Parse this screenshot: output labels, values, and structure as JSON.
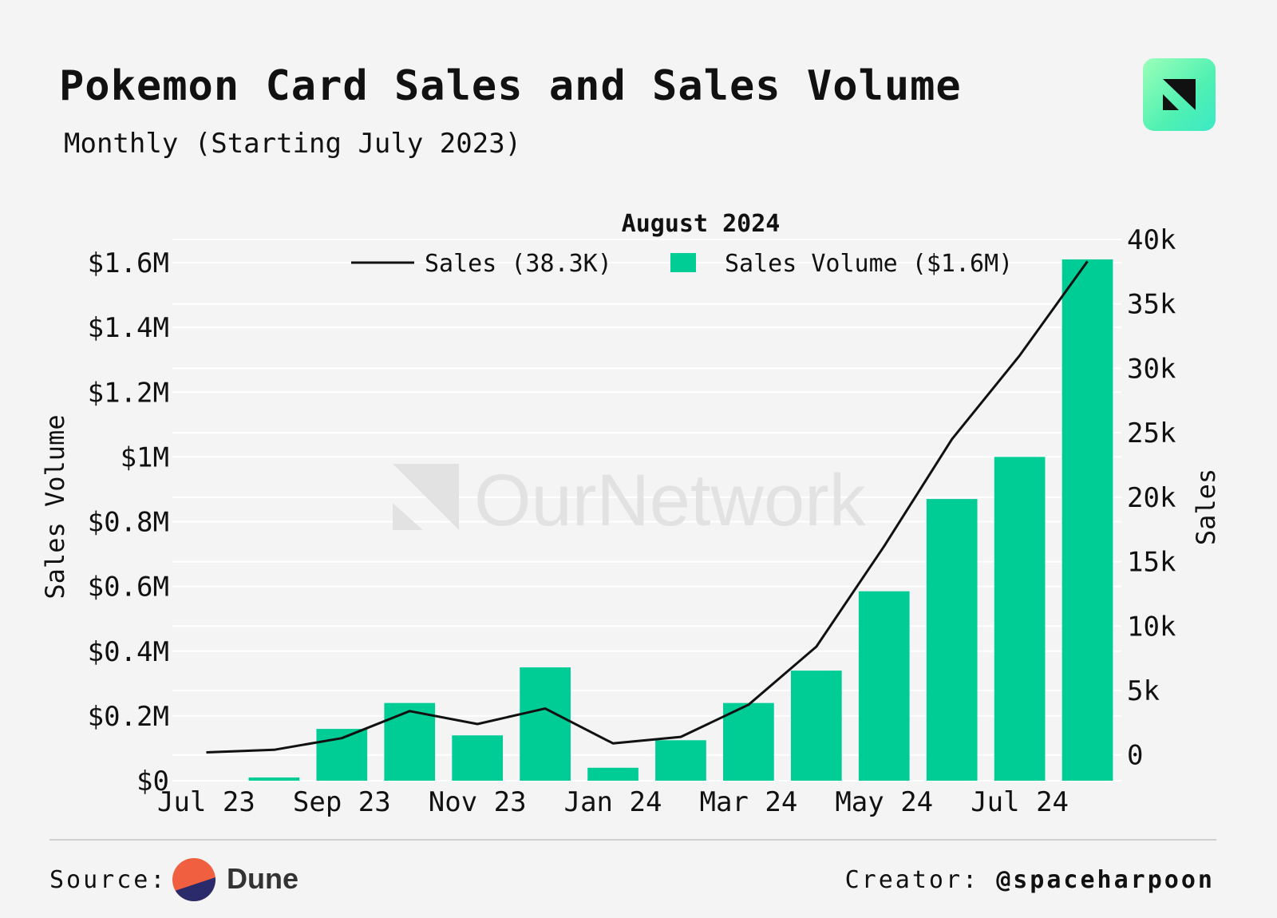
{
  "header": {
    "title": "Pokemon Card Sales and Sales Volume",
    "subtitle": "Monthly (Starting July 2023)"
  },
  "watermark": "OurNetwork",
  "footer": {
    "source_label": "Source:",
    "source_name": "Dune",
    "creator_label": "Creator:",
    "creator_handle": "@spaceharpoon"
  },
  "colors": {
    "bar": "#00cc96",
    "line": "#111111",
    "grid": "#ffffff",
    "background": "#f4f4f4"
  },
  "chart_data": {
    "type": "bar",
    "title": "August 2024",
    "categories": [
      "Jul 23",
      "Aug 23",
      "Sep 23",
      "Oct 23",
      "Nov 23",
      "Dec 23",
      "Jan 24",
      "Feb 24",
      "Mar 24",
      "Apr 24",
      "May 24",
      "Jun 24",
      "Jul 24",
      "Aug 24"
    ],
    "x_tick_labels": [
      "Jul 23",
      "Sep 23",
      "Nov 23",
      "Jan 24",
      "Mar 24",
      "May 24",
      "Jul 24"
    ],
    "series": [
      {
        "name": "Sales Volume",
        "legend_label": "Sales Volume ($1.6M)",
        "type": "bar",
        "axis": "left",
        "values": [
          0,
          0.01,
          0.16,
          0.24,
          0.14,
          0.35,
          0.04,
          0.125,
          0.24,
          0.34,
          0.585,
          0.87,
          1.0,
          1.61
        ]
      },
      {
        "name": "Sales",
        "legend_label": "Sales (38.3K)",
        "type": "line",
        "axis": "right",
        "values": [
          200,
          400,
          1300,
          3400,
          2400,
          3600,
          900,
          1400,
          3900,
          8400,
          16200,
          24500,
          31000,
          38300
        ]
      }
    ],
    "y_left": {
      "label": "Sales Volume",
      "range": [
        0,
        1.6
      ],
      "ticks": [
        0,
        0.2,
        0.4,
        0.6,
        0.8,
        1.0,
        1.2,
        1.4,
        1.6
      ],
      "tick_labels": [
        "$0",
        "$0.2M",
        "$0.4M",
        "$0.6M",
        "$0.8M",
        "$1M",
        "$1.2M",
        "$1.4M",
        "$1.6M"
      ]
    },
    "y_right": {
      "label": "Sales",
      "range": [
        -2000,
        40000
      ],
      "ticks": [
        0,
        5000,
        10000,
        15000,
        20000,
        25000,
        30000,
        35000,
        40000
      ],
      "tick_labels": [
        "0",
        "5k",
        "10k",
        "15k",
        "20k",
        "25k",
        "30k",
        "35k",
        "40k"
      ]
    },
    "grid": true,
    "legend_position": "top-center"
  }
}
